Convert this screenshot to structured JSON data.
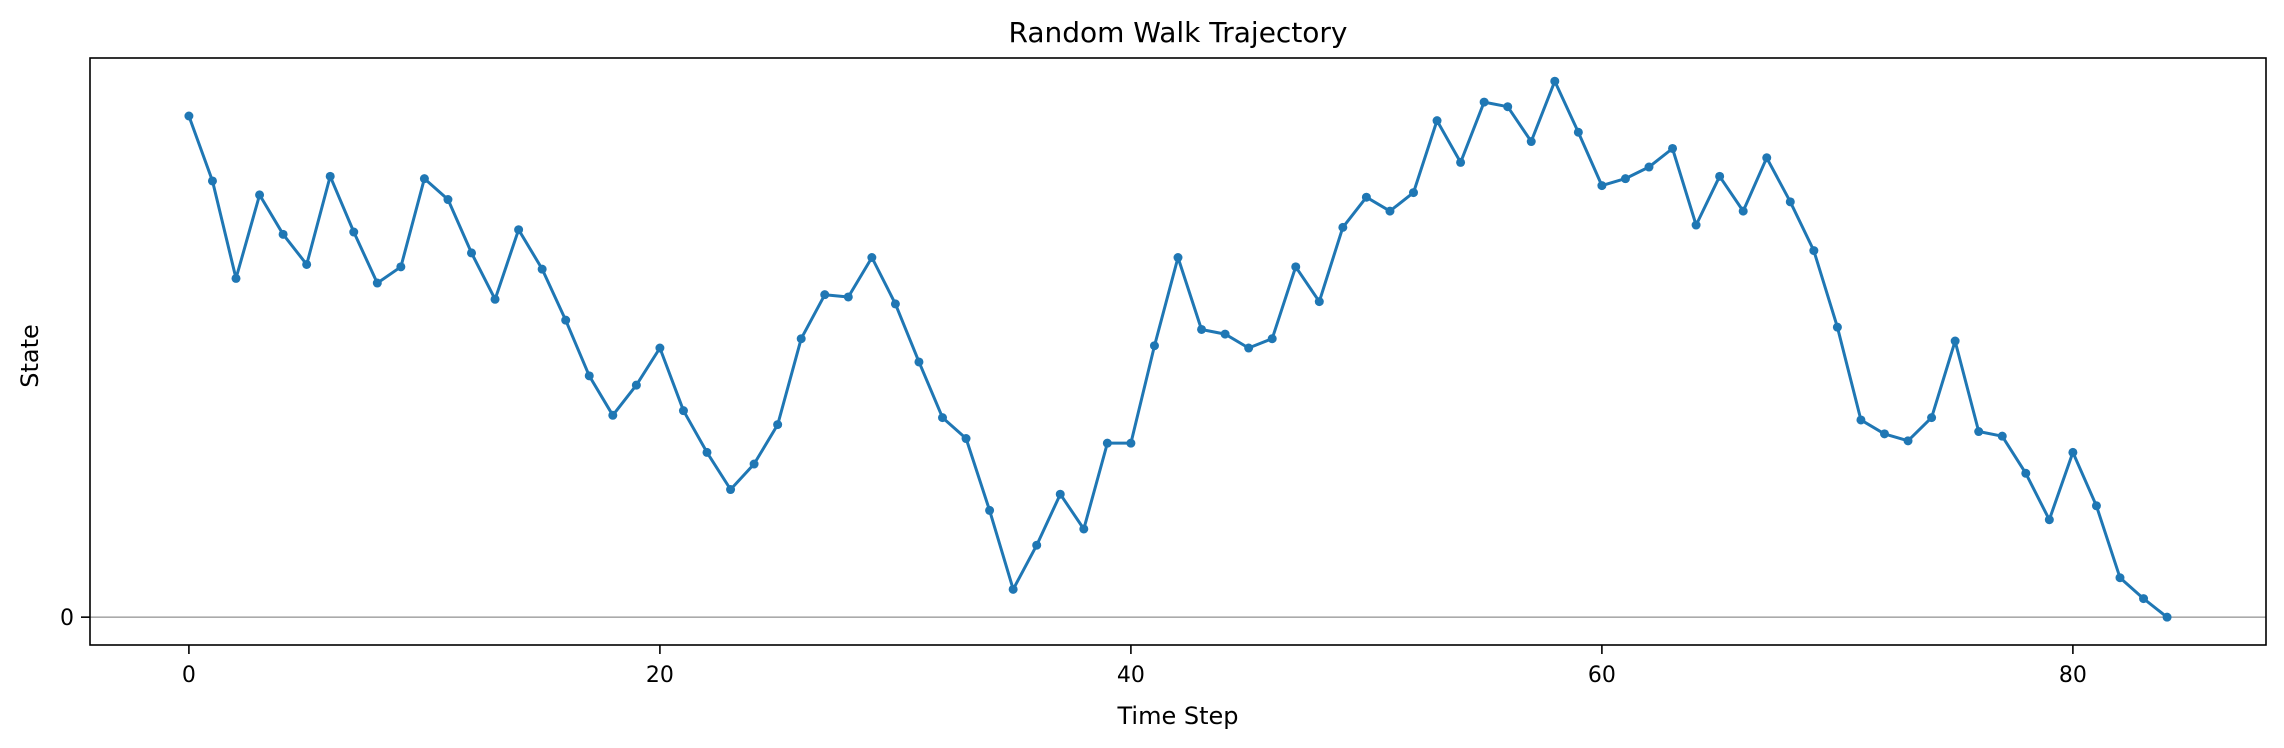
{
  "chart_data": {
    "type": "line",
    "title": "Random Walk Trajectory",
    "xlabel": "Time Step",
    "ylabel": "State",
    "x_ticks": [
      0,
      20,
      40,
      60,
      80
    ],
    "y_ticks": [
      0
    ],
    "xlim": [
      -4.2,
      88.2
    ],
    "ylim": [
      -1.2,
      24.1
    ],
    "grid": false,
    "reference_line": {
      "y": 0,
      "color": "#aaaaaa"
    },
    "series": [
      {
        "color": "#1f77b4",
        "x": [
          0,
          1,
          2,
          3,
          4,
          5,
          6,
          7,
          8,
          9,
          10,
          11,
          12,
          13,
          14,
          15,
          16,
          17,
          18,
          19,
          20,
          21,
          22,
          23,
          24,
          25,
          26,
          27,
          28,
          29,
          30,
          31,
          32,
          33,
          34,
          35,
          36,
          37,
          38,
          39,
          40,
          41,
          42,
          43,
          44,
          45,
          46,
          47,
          48,
          49,
          50,
          51,
          52,
          53,
          54,
          55,
          56,
          57,
          58,
          59,
          60,
          61,
          62,
          63,
          64,
          65,
          66,
          67,
          68,
          69,
          70,
          71,
          72,
          73,
          74,
          75,
          76,
          77,
          78,
          79,
          80,
          81,
          82,
          83,
          84
        ],
        "y": [
          21.6,
          18.8,
          14.6,
          18.2,
          16.5,
          15.2,
          19.0,
          16.6,
          14.4,
          15.1,
          18.9,
          18.0,
          15.7,
          13.7,
          16.7,
          15.0,
          12.8,
          10.4,
          8.7,
          10.0,
          11.6,
          8.9,
          7.1,
          5.5,
          6.6,
          8.3,
          12.0,
          13.9,
          13.8,
          15.5,
          13.5,
          11.0,
          8.6,
          7.7,
          4.6,
          1.2,
          3.1,
          5.3,
          3.8,
          7.5,
          7.5,
          11.7,
          15.5,
          12.4,
          12.2,
          11.6,
          12.0,
          15.1,
          13.6,
          16.8,
          18.1,
          17.5,
          18.3,
          21.4,
          19.6,
          22.2,
          22.0,
          20.5,
          23.1,
          20.9,
          18.6,
          18.9,
          19.4,
          20.2,
          16.9,
          19.0,
          17.5,
          19.8,
          17.9,
          15.8,
          12.5,
          8.5,
          7.9,
          7.6,
          8.6,
          11.9,
          8.0,
          7.8,
          6.2,
          4.2,
          7.1,
          4.8,
          1.7,
          0.8,
          0.0
        ]
      }
    ]
  }
}
